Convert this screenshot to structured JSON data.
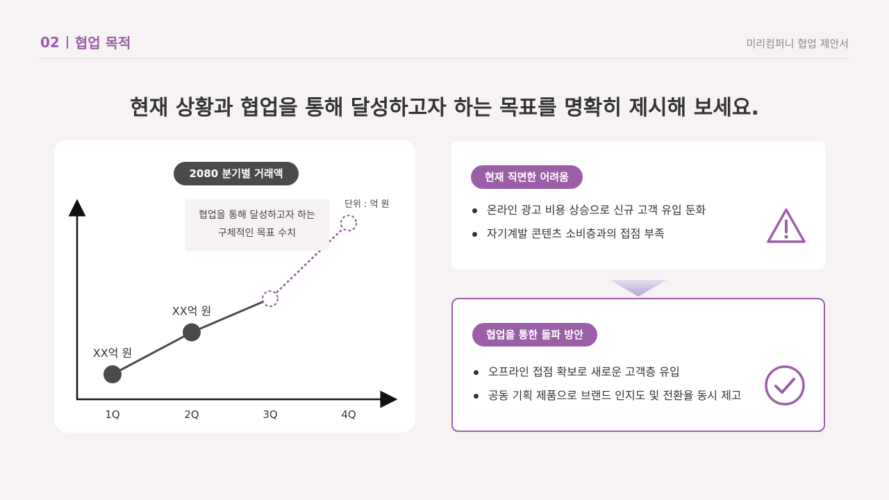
{
  "header": {
    "section_number": "02",
    "section_title": "협업 목적",
    "doc_title": "미리컴퍼니 협업 제안서"
  },
  "headline": "현재 상황과 협업을 통해 달성하고자 하는 목표를 명확히 제시해 보세요.",
  "chart_card": {
    "title": "2080 분기별 거래액",
    "unit": "단위 : 억 원",
    "note_line1": "협업을 통해 달성하고자 하는",
    "note_line2": "구체적인 목표 수치"
  },
  "chart_data": {
    "type": "line",
    "title": "2080 분기별 거래액",
    "categories": [
      "1Q",
      "2Q",
      "3Q",
      "4Q"
    ],
    "series": [
      {
        "values": [
          1,
          2,
          2.8,
          4.6
        ]
      }
    ],
    "point_labels": [
      "XX억 원",
      "XX억 원",
      "",
      ""
    ],
    "actual_points": 2,
    "target_points": [
      3,
      4
    ],
    "ylabel": "",
    "xlabel": "",
    "grid": false,
    "colors": {
      "actual": "#4a4a4a",
      "target": "#9a5fa6"
    }
  },
  "problem_card": {
    "label": "현재 직면한 어려움",
    "bullets": [
      "온라인 광고 비용 상승으로 신규 고객 유입 둔화",
      "자기계발 콘텐츠 소비층과의 접점 부족"
    ],
    "icon": "warning-icon"
  },
  "solution_card": {
    "label": "협업을 통한 돌파 방안",
    "bullets": [
      "오프라인 접점 확보로 새로운 고객층 유입",
      "공동 기획 제품으로 브랜드 인지도 및 전환율 동시 제고"
    ],
    "icon": "check-circle-icon"
  },
  "colors": {
    "accent": "#9a5fa6",
    "dark": "#4a4a4a",
    "background": "#f7f3f5"
  }
}
